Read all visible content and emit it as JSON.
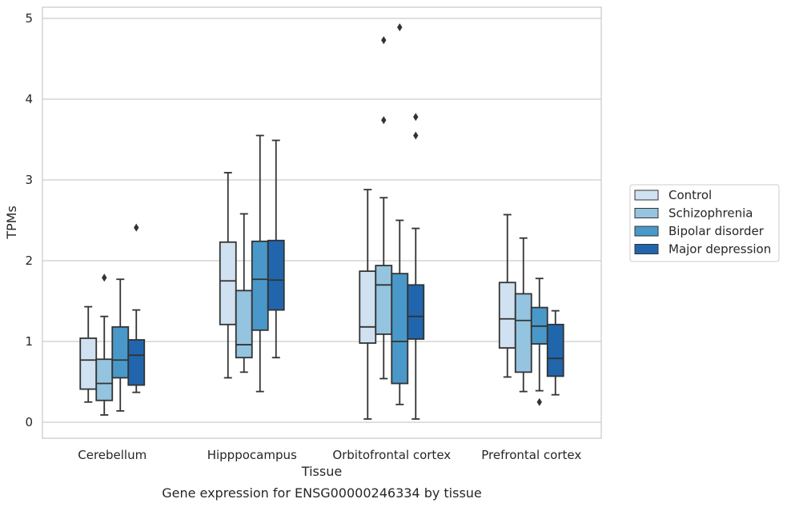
{
  "caption": "Gene expression for ENSG00000246334 by tissue",
  "chart_data": {
    "type": "box",
    "title": "",
    "xlabel": "Tissue",
    "ylabel": "TPMs",
    "ylim": [
      -0.18,
      5.15
    ],
    "yticks": [
      0,
      1,
      2,
      3,
      4,
      5
    ],
    "grid": "horizontal",
    "legend_position": "right",
    "categories": [
      "Cerebellum",
      "Hipppocampus",
      "Orbitofrontal cortex",
      "Prefrontal cortex"
    ],
    "series": [
      {
        "name": "Control",
        "color": "#d0e1f2",
        "boxes": [
          {
            "whisker_low": 0.25,
            "q1": 0.41,
            "median": 0.77,
            "q3": 1.04,
            "whisker_high": 1.43,
            "outliers": []
          },
          {
            "whisker_low": 0.55,
            "q1": 1.21,
            "median": 1.75,
            "q3": 2.23,
            "whisker_high": 3.09,
            "outliers": []
          },
          {
            "whisker_low": 0.04,
            "q1": 0.98,
            "median": 1.18,
            "q3": 1.87,
            "whisker_high": 2.88,
            "outliers": []
          },
          {
            "whisker_low": 0.56,
            "q1": 0.92,
            "median": 1.28,
            "q3": 1.73,
            "whisker_high": 2.57,
            "outliers": []
          }
        ]
      },
      {
        "name": "Schizophrenia",
        "color": "#94c4df",
        "boxes": [
          {
            "whisker_low": 0.09,
            "q1": 0.27,
            "median": 0.48,
            "q3": 0.78,
            "whisker_high": 1.31,
            "outliers": [
              1.79
            ]
          },
          {
            "whisker_low": 0.62,
            "q1": 0.8,
            "median": 0.96,
            "q3": 1.63,
            "whisker_high": 2.58,
            "outliers": []
          },
          {
            "whisker_low": 0.54,
            "q1": 1.09,
            "median": 1.7,
            "q3": 1.94,
            "whisker_high": 2.78,
            "outliers": [
              3.74,
              4.73
            ]
          },
          {
            "whisker_low": 0.38,
            "q1": 0.62,
            "median": 1.26,
            "q3": 1.59,
            "whisker_high": 2.28,
            "outliers": []
          }
        ]
      },
      {
        "name": "Bipolar disorder",
        "color": "#4a98c9",
        "boxes": [
          {
            "whisker_low": 0.14,
            "q1": 0.55,
            "median": 0.77,
            "q3": 1.18,
            "whisker_high": 1.77,
            "outliers": []
          },
          {
            "whisker_low": 0.38,
            "q1": 1.14,
            "median": 1.77,
            "q3": 2.24,
            "whisker_high": 3.55,
            "outliers": []
          },
          {
            "whisker_low": 0.22,
            "q1": 0.48,
            "median": 1.0,
            "q3": 1.84,
            "whisker_high": 2.5,
            "outliers": [
              4.89
            ]
          },
          {
            "whisker_low": 0.39,
            "q1": 0.97,
            "median": 1.19,
            "q3": 1.42,
            "whisker_high": 1.78,
            "outliers": [
              0.25
            ]
          }
        ]
      },
      {
        "name": "Major depression",
        "color": "#2166ac",
        "boxes": [
          {
            "whisker_low": 0.37,
            "q1": 0.46,
            "median": 0.83,
            "q3": 1.02,
            "whisker_high": 1.39,
            "outliers": [
              2.41
            ]
          },
          {
            "whisker_low": 0.8,
            "q1": 1.39,
            "median": 1.76,
            "q3": 2.25,
            "whisker_high": 3.49,
            "outliers": []
          },
          {
            "whisker_low": 0.04,
            "q1": 1.03,
            "median": 1.31,
            "q3": 1.7,
            "whisker_high": 2.4,
            "outliers": [
              3.55,
              3.78
            ]
          },
          {
            "whisker_low": 0.34,
            "q1": 0.57,
            "median": 0.79,
            "q3": 1.21,
            "whisker_high": 1.38,
            "outliers": []
          }
        ]
      }
    ]
  }
}
